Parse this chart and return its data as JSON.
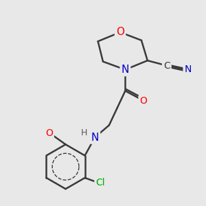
{
  "bg_color": "#e8e8e8",
  "bond_color": "#3a3a3a",
  "bond_width": 1.8,
  "atom_colors": {
    "O": "#ff0000",
    "N": "#0000cc",
    "Cl": "#00aa00",
    "C": "#3a3a3a",
    "H": "#555555"
  },
  "font_size": 10,
  "fig_size": [
    3.0,
    3.0
  ],
  "dpi": 100,
  "xlim": [
    0,
    10
  ],
  "ylim": [
    0,
    10
  ]
}
